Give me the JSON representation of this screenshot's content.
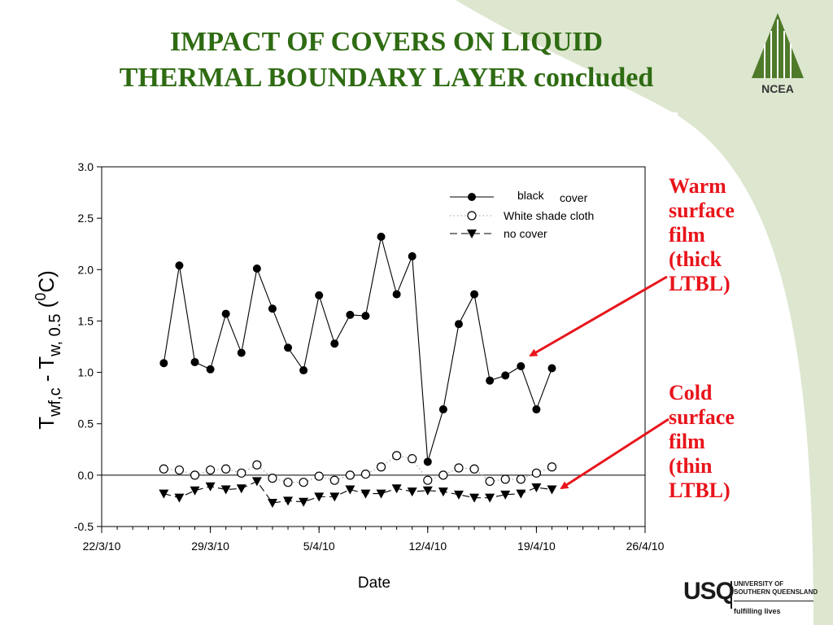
{
  "slide": {
    "title_line1": "IMPACT OF COVERS ON LIQUID",
    "title_line2": "THERMAL BOUNDARY LAYER concluded",
    "logo_text": "NCEA",
    "annotations": {
      "warm": [
        "Warm",
        "surface",
        "film",
        "(thick",
        "LTBL)"
      ],
      "cold": [
        "Cold",
        "surface",
        "film",
        "(thin",
        "LTBL)"
      ]
    },
    "footer_logo": {
      "abbrev": "USQ",
      "name_line1": "UNIVERSITY OF",
      "name_line2": "SOUTHERN QUEENSLAND",
      "tagline": "fulfilling lives"
    },
    "colors": {
      "title": "#2e6b12",
      "annotation": "#e8141b",
      "background_accent": "#dde6cf"
    }
  },
  "chart_data": {
    "type": "line",
    "xlabel": "Date",
    "ylabel_parts": {
      "t1": "T",
      "s1": "wf,c",
      "mid": " - T",
      "s2": "w, 0.5",
      "open": " (",
      "sup": "0",
      "unit": "C)"
    },
    "xlim": [
      "22/3/10",
      "26/4/10"
    ],
    "xticks": [
      "22/3/10",
      "29/3/10",
      "5/4/10",
      "12/4/10",
      "19/4/10",
      "26/4/10"
    ],
    "ylim": [
      -0.5,
      3.0
    ],
    "yticks": [
      "-0.5",
      "0.0",
      "0.5",
      "1.0",
      "1.5",
      "2.0",
      "2.5",
      "3.0"
    ],
    "x": [
      "26/3/10",
      "27/3/10",
      "28/3/10",
      "29/3/10",
      "30/3/10",
      "31/3/10",
      "1/4/10",
      "2/4/10",
      "3/4/10",
      "4/4/10",
      "5/4/10",
      "6/4/10",
      "7/4/10",
      "8/4/10",
      "9/4/10",
      "10/4/10",
      "11/4/10",
      "12/4/10",
      "13/4/10",
      "14/4/10",
      "15/4/10",
      "16/4/10",
      "17/4/10",
      "18/4/10",
      "19/4/10",
      "20/4/10"
    ],
    "series": [
      {
        "name": "black",
        "name_suffix": "cover",
        "marker": "filled-circle",
        "line": "solid",
        "values": [
          1.09,
          2.04,
          1.1,
          1.03,
          1.57,
          1.19,
          2.01,
          1.62,
          1.24,
          1.02,
          1.75,
          1.28,
          1.56,
          1.55,
          2.32,
          1.76,
          2.13,
          0.13,
          0.64,
          1.47,
          1.76,
          0.92,
          0.97,
          1.06,
          0.64,
          1.04
        ]
      },
      {
        "name": "White shade cloth",
        "marker": "open-circle",
        "line": "dotted",
        "values": [
          0.06,
          0.05,
          0.0,
          0.05,
          0.06,
          0.02,
          0.1,
          -0.03,
          -0.07,
          -0.07,
          -0.01,
          -0.05,
          0.0,
          0.01,
          0.08,
          0.19,
          0.16,
          -0.05,
          0.0,
          0.07,
          0.06,
          -0.06,
          -0.04,
          -0.04,
          0.02,
          0.08
        ]
      },
      {
        "name": "no cover",
        "marker": "filled-triangle-down",
        "line": "dashed",
        "values": [
          -0.18,
          -0.22,
          -0.15,
          -0.11,
          -0.14,
          -0.13,
          -0.06,
          -0.27,
          -0.25,
          -0.26,
          -0.21,
          -0.21,
          -0.14,
          -0.18,
          -0.18,
          -0.13,
          -0.16,
          -0.15,
          -0.16,
          -0.19,
          -0.22,
          -0.22,
          -0.19,
          -0.18,
          -0.12,
          -0.14
        ]
      }
    ],
    "reference_line": 0.0,
    "legend_position": "top-right",
    "grid": false
  }
}
